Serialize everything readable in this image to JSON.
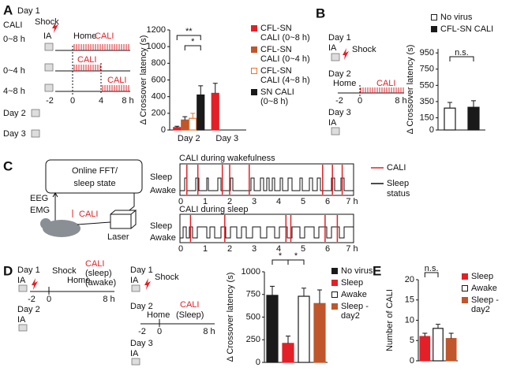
{
  "figure": {
    "A": {
      "letter": "A",
      "day1": "Day 1",
      "cali": "CALI",
      "shock": "Shock",
      "ia": "IA",
      "home": "Home",
      "rows": [
        "0~8 h",
        "0~4 h",
        "4~8 h"
      ],
      "row_cali": [
        "CALI",
        "CALI",
        "CALI"
      ],
      "time_labels": [
        "-2",
        "0",
        "4",
        "8 h"
      ],
      "day2": "Day 2",
      "day3": "Day 3"
    },
    "B": {
      "letter": "B",
      "day1": "Day 1",
      "ia": "IA",
      "shock": "Shock",
      "day2": "Day 2",
      "home": "Home",
      "cali": "CALI",
      "time_labels": [
        "-2",
        "0",
        "8 h"
      ],
      "day3": "Day 3",
      "ia3": "IA"
    },
    "C": {
      "letter": "C",
      "box_lines": [
        "Online FFT/",
        "sleep state"
      ],
      "eeg": "EEG",
      "emg": "EMG",
      "cali": "CALI",
      "laser": "Laser",
      "wake_title": "CALI during wakefulness",
      "sleep_title": "CALI during sleep",
      "wake_rows": [
        "Sleep",
        "Awake"
      ],
      "sleep_rows": [
        "Sleep",
        "Awake"
      ],
      "wake_hours": [
        "0",
        "1",
        "2",
        "3",
        "4",
        "5",
        "6",
        "7 h"
      ],
      "sleep_hours": [
        "0",
        "1",
        "2",
        "3",
        "4",
        "5",
        "6",
        "7 h"
      ],
      "wake_cali_times": [
        0.25,
        0.7,
        1.7,
        2.0,
        2.8,
        5.8,
        6.2,
        6.6
      ],
      "sleep_cali_times": [
        0.4,
        1.8,
        4.3,
        4.5,
        5.9,
        6.4
      ],
      "legend_cali": "CALI",
      "legend_status": [
        "Sleep",
        "status"
      ]
    },
    "D": {
      "letter": "D",
      "p1": {
        "day1": "Day 1",
        "ia": "IA",
        "shock": "Shock",
        "cali": "CALI",
        "cali_modes": [
          "(sleep)",
          "(awake)"
        ],
        "home": "Home",
        "time_labels": [
          "-2",
          "0",
          "8 h"
        ],
        "day2": "Day 2",
        "ia2": "IA"
      },
      "p2": {
        "day1": "Day 1",
        "ia": "IA",
        "shock": "Shock",
        "day2": "Day 2",
        "home": "Home",
        "cali": "CALI",
        "cali_mode": "(Sleep)",
        "time_labels": [
          "-2",
          "0",
          "8 h"
        ],
        "day3": "Day 3",
        "ia3": "IA"
      }
    },
    "E": {
      "letter": "E"
    }
  },
  "chart_data": [
    {
      "type": "bar",
      "ylabel": "Δ Crossover latency (s)",
      "categories": [
        "Day 2",
        "Day 3"
      ],
      "series": [
        {
          "name": "CFL-SN CALI (0~8 h)",
          "color": "#e32027",
          "open": false,
          "values": [
            30,
            440
          ],
          "errors": [
            15,
            120
          ]
        },
        {
          "name": "CFL-SN CALI (0~4 h)",
          "color": "#c0562b",
          "open": false,
          "values": [
            120,
            null
          ],
          "errors": [
            40,
            null
          ]
        },
        {
          "name": "CFL-SN CALI (4~8 h)",
          "color": "#e8742f",
          "open": true,
          "values": [
            140,
            null
          ],
          "errors": [
            60,
            null
          ]
        },
        {
          "name": "SN CALI (0~8 h)",
          "color": "#1a1a1a",
          "open": false,
          "values": [
            420,
            null
          ],
          "errors": [
            110,
            null
          ]
        }
      ],
      "ylim": [
        0,
        1200
      ],
      "yticks": [
        0,
        200,
        400,
        600,
        800,
        1000,
        1200
      ],
      "annotations": [
        "**",
        "*"
      ]
    },
    {
      "type": "bar",
      "ylabel": "Δ Crossover latency (s)",
      "categories": [
        "No virus",
        "CFL-SN CALI"
      ],
      "values": [
        270,
        280
      ],
      "errors": [
        70,
        80
      ],
      "colors": [
        "#1a1a1a",
        "#1a1a1a"
      ],
      "open": [
        true,
        false
      ],
      "ylim": [
        0,
        1000
      ],
      "yticks": [
        0,
        150,
        350,
        550,
        750,
        950
      ],
      "annotations": [
        "n.s."
      ]
    },
    {
      "type": "bar",
      "ylabel": "Δ Crossover latency (s)",
      "categories": [
        "No virus",
        "Sleep",
        "Awake",
        "Sleep -day2"
      ],
      "values": [
        740,
        210,
        730,
        650
      ],
      "errors": [
        100,
        80,
        90,
        150
      ],
      "colors": [
        "#1a1a1a",
        "#e32027",
        "#1a1a1a",
        "#c0562b"
      ],
      "open": [
        false,
        false,
        true,
        false
      ],
      "ylim": [
        0,
        1000
      ],
      "yticks": [
        0,
        250,
        500,
        750,
        1000
      ],
      "annotations": [
        "*",
        "*"
      ]
    },
    {
      "type": "bar",
      "ylabel": "Number of CALI",
      "categories": [
        "Sleep",
        "Awake",
        "Sleep -day2"
      ],
      "values": [
        6,
        8,
        5.5
      ],
      "errors": [
        0.8,
        1,
        1.3
      ],
      "colors": [
        "#e32027",
        "#1a1a1a",
        "#c0562b"
      ],
      "open": [
        false,
        true,
        false
      ],
      "ylim": [
        0,
        20
      ],
      "yticks": [
        0,
        5,
        10,
        15,
        20
      ],
      "annotations": [
        "n.s."
      ]
    }
  ]
}
